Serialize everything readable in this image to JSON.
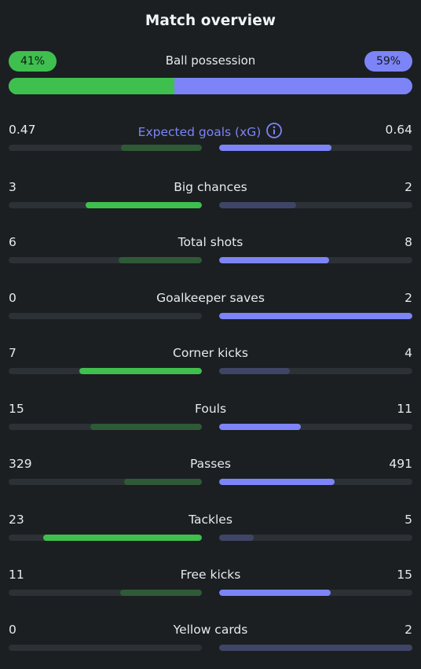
{
  "title": "Match overview",
  "possession": {
    "label": "Ball possession",
    "home": "41%",
    "away": "59%",
    "home_fraction": 0.41
  },
  "colors": {
    "home_accent": "#3fbf4d",
    "away_accent": "#7c84f7",
    "home_dim": "#2f5a36",
    "away_dim": "#3f4566",
    "track": "#2c3135",
    "background": "#1b1f22"
  },
  "stats": [
    {
      "label": "Expected goals (xG)",
      "home": "0.47",
      "away": "0.64",
      "home_fraction": 0.42,
      "away_fraction": 0.58,
      "winner": "away",
      "accent": true,
      "icon": "info-icon"
    },
    {
      "label": "Big chances",
      "home": "3",
      "away": "2",
      "home_fraction": 0.6,
      "away_fraction": 0.4,
      "winner": "home"
    },
    {
      "label": "Total shots",
      "home": "6",
      "away": "8",
      "home_fraction": 0.43,
      "away_fraction": 0.57,
      "winner": "away"
    },
    {
      "label": "Goalkeeper saves",
      "home": "0",
      "away": "2",
      "home_fraction": 0.0,
      "away_fraction": 1.0,
      "winner": "away"
    },
    {
      "label": "Corner kicks",
      "home": "7",
      "away": "4",
      "home_fraction": 0.636,
      "away_fraction": 0.364,
      "winner": "home"
    },
    {
      "label": "Fouls",
      "home": "15",
      "away": "11",
      "home_fraction": 0.577,
      "away_fraction": 0.423,
      "winner": "away"
    },
    {
      "label": "Passes",
      "home": "329",
      "away": "491",
      "home_fraction": 0.401,
      "away_fraction": 0.599,
      "winner": "away"
    },
    {
      "label": "Tackles",
      "home": "23",
      "away": "5",
      "home_fraction": 0.821,
      "away_fraction": 0.179,
      "winner": "home"
    },
    {
      "label": "Free kicks",
      "home": "11",
      "away": "15",
      "home_fraction": 0.423,
      "away_fraction": 0.577,
      "winner": "away"
    },
    {
      "label": "Yellow cards",
      "home": "0",
      "away": "2",
      "home_fraction": 0.0,
      "away_fraction": 1.0,
      "winner": "none"
    }
  ]
}
